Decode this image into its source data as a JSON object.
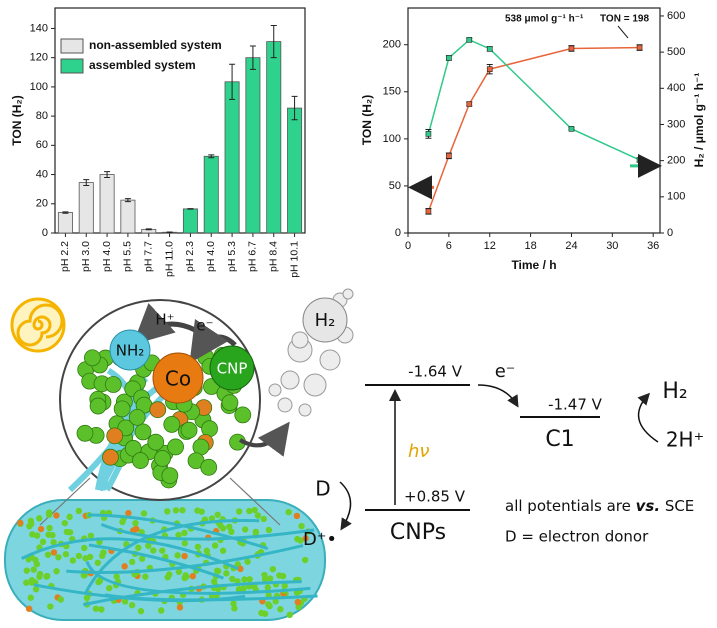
{
  "chart_data": [
    {
      "type": "bar",
      "ylabel": "TON (H₂)",
      "categories": [
        "pH 2.2",
        "pH 3.0",
        "pH 4.0",
        "pH 5.5",
        "pH 7.7",
        "pH 11.0",
        "pH 2.3",
        "pH 4.0",
        "pH 5.3",
        "pH 6.7",
        "pH 8.4",
        "pH 10.1"
      ],
      "series": [
        {
          "name": "non-assembled system",
          "color": "#e6e6e6",
          "values": [
            14,
            34.5,
            40,
            22.5,
            2.5,
            0.5,
            null,
            null,
            null,
            null,
            null,
            null
          ],
          "errors": [
            0.5,
            2,
            2,
            1,
            0.3,
            0.2,
            null,
            null,
            null,
            null,
            null,
            null
          ]
        },
        {
          "name": "assembled system",
          "color": "#2fd28c",
          "values": [
            null,
            null,
            null,
            null,
            null,
            null,
            16.5,
            52.5,
            103.5,
            120,
            131,
            85.5
          ],
          "errors": [
            null,
            null,
            null,
            null,
            null,
            null,
            0.2,
            1,
            12,
            8,
            11,
            8
          ]
        }
      ],
      "ylim": [
        0,
        154
      ],
      "yticks": [
        0,
        20,
        40,
        60,
        80,
        100,
        120,
        140
      ],
      "legend": "upper left"
    },
    {
      "type": "line",
      "xlabel": "Time / h",
      "ylabel": "TON (H₂)",
      "y2label": "H₂ / μmol g⁻¹ h⁻¹",
      "series": [
        {
          "color": "#e8643a",
          "x": [
            3,
            6,
            9,
            12,
            24,
            34
          ],
          "values": [
            23,
            82,
            137,
            174,
            196,
            197
          ],
          "errors": [
            3,
            3,
            2,
            5,
            3,
            3
          ]
        },
        {
          "color": "#2fc98a",
          "axis": "y2",
          "x": [
            3,
            6,
            9,
            12,
            24,
            34
          ],
          "values": [
            274,
            484,
            534,
            509,
            288,
            202
          ],
          "errors": [
            12,
            6,
            4,
            6,
            3,
            5
          ]
        }
      ],
      "annotations": [
        "538 μmol g⁻¹ h⁻¹",
        "TON = 198"
      ],
      "xlim": [
        0,
        37
      ],
      "xticks": [
        0,
        6,
        12,
        18,
        24,
        30,
        36
      ],
      "ylim": [
        0,
        239
      ],
      "yticks": [
        0,
        50,
        100,
        150,
        200
      ],
      "y2lim": [
        0,
        622
      ],
      "y2ticks": [
        0,
        100,
        200,
        300,
        400,
        500,
        600
      ]
    }
  ],
  "diagram": {
    "catalyst": {
      "proton": "H⁺",
      "electron": "e⁻",
      "amine": "NH₂",
      "cobalt": "Co",
      "cnp": "CNP",
      "hydrogen": "H₂"
    },
    "energy": {
      "cnp_lumo": "-1.64 V",
      "electron": "e⁻",
      "c1_level": "-1.47 V",
      "c1": "C1",
      "h2": "H₂",
      "protons": "2H⁺",
      "photon": "hν",
      "donor": "D",
      "donor_ox": "D⁺•",
      "cnp_homo": "+0.85 V",
      "cnps": "CNPs",
      "note": [
        "all potentials are ",
        "vs.",
        " SCE"
      ],
      "donor_note": "D = electron donor"
    }
  }
}
